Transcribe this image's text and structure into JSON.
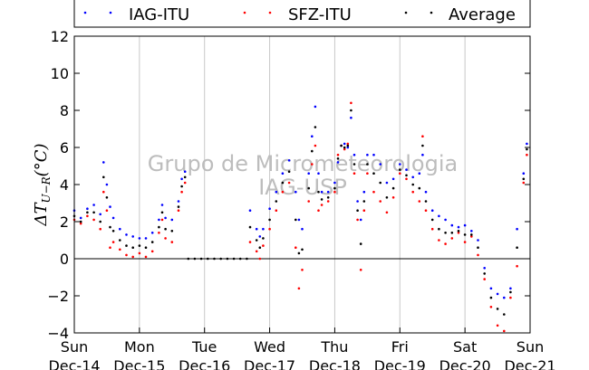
{
  "chart_data": {
    "type": "scatter",
    "ylabel": "ΔT",
    "ylabel_sub": "U−R",
    "ylabel_unit": "(°C)",
    "ylim": [
      -4,
      12
    ],
    "yticks": [
      -4,
      -2,
      0,
      2,
      4,
      6,
      8,
      10,
      12
    ],
    "xlim": [
      0,
      7
    ],
    "xticks": [
      {
        "x": 0,
        "day": "Sun",
        "date": "Dec-14"
      },
      {
        "x": 1,
        "day": "Mon",
        "date": "Dec-15"
      },
      {
        "x": 2,
        "day": "Tue",
        "date": "Dec-16"
      },
      {
        "x": 3,
        "day": "Wed",
        "date": "Dec-17"
      },
      {
        "x": 4,
        "day": "Thu",
        "date": "Dec-18"
      },
      {
        "x": 5,
        "day": "Fri",
        "date": "Dec-19"
      },
      {
        "x": 6,
        "day": "Sat",
        "date": "Dec-20"
      },
      {
        "x": 7,
        "day": "Sun",
        "date": "Dec-21"
      }
    ],
    "grid": "vertical",
    "zero_line": true,
    "legend_position": "top",
    "watermark_lines": [
      "Grupo de Micrometeorologia",
      "IAG-USP"
    ],
    "series": [
      {
        "name": "IAG-ITU",
        "color": "#0000ff",
        "points": [
          [
            0,
            2.6
          ],
          [
            0.1,
            2.2
          ],
          [
            0.2,
            2.7
          ],
          [
            0.3,
            2.9
          ],
          [
            0.4,
            2.4
          ],
          [
            0.45,
            5.2
          ],
          [
            0.5,
            4.0
          ],
          [
            0.55,
            2.8
          ],
          [
            0.6,
            2.2
          ],
          [
            0.7,
            1.6
          ],
          [
            0.8,
            1.3
          ],
          [
            0.9,
            1.2
          ],
          [
            1.0,
            1.1
          ],
          [
            1.1,
            1.1
          ],
          [
            1.2,
            1.4
          ],
          [
            1.3,
            2.1
          ],
          [
            1.35,
            2.9
          ],
          [
            1.4,
            2.2
          ],
          [
            1.5,
            2.1
          ],
          [
            1.6,
            3.1
          ],
          [
            1.65,
            4.3
          ],
          [
            1.7,
            4.7
          ],
          [
            2.7,
            2.6
          ],
          [
            2.8,
            1.6
          ],
          [
            2.85,
            1.2
          ],
          [
            2.9,
            1.6
          ],
          [
            3.0,
            2.7
          ],
          [
            3.1,
            3.6
          ],
          [
            3.2,
            4.6
          ],
          [
            3.3,
            5.3
          ],
          [
            3.4,
            3.6
          ],
          [
            3.45,
            2.1
          ],
          [
            3.5,
            1.6
          ],
          [
            3.6,
            4.6
          ],
          [
            3.65,
            6.6
          ],
          [
            3.7,
            8.2
          ],
          [
            3.75,
            4.6
          ],
          [
            3.8,
            3.6
          ],
          [
            3.9,
            3.6
          ],
          [
            4.0,
            4.1
          ],
          [
            4.05,
            5.2
          ],
          [
            4.1,
            6.1
          ],
          [
            4.15,
            6.2
          ],
          [
            4.2,
            6.0
          ],
          [
            4.25,
            7.6
          ],
          [
            4.3,
            5.6
          ],
          [
            4.35,
            3.1
          ],
          [
            4.4,
            2.1
          ],
          [
            4.45,
            3.6
          ],
          [
            4.5,
            5.6
          ],
          [
            4.6,
            5.6
          ],
          [
            4.7,
            5.1
          ],
          [
            4.8,
            4.1
          ],
          [
            4.9,
            4.3
          ],
          [
            5.0,
            5.1
          ],
          [
            5.1,
            4.8
          ],
          [
            5.2,
            4.4
          ],
          [
            5.3,
            4.6
          ],
          [
            5.35,
            5.6
          ],
          [
            5.4,
            3.6
          ],
          [
            5.5,
            2.6
          ],
          [
            5.6,
            2.3
          ],
          [
            5.7,
            2.1
          ],
          [
            5.8,
            1.8
          ],
          [
            5.9,
            1.7
          ],
          [
            6.0,
            1.8
          ],
          [
            6.1,
            1.5
          ],
          [
            6.2,
            1.0
          ],
          [
            6.3,
            -0.5
          ],
          [
            6.4,
            -1.6
          ],
          [
            6.5,
            -1.9
          ],
          [
            6.6,
            -2.1
          ],
          [
            6.7,
            -1.6
          ],
          [
            6.8,
            1.6
          ],
          [
            6.9,
            4.6
          ],
          [
            6.95,
            6.2
          ]
        ]
      },
      {
        "name": "SFZ-ITU",
        "color": "#ff0000",
        "points": [
          [
            0,
            2.1
          ],
          [
            0.1,
            1.9
          ],
          [
            0.2,
            2.3
          ],
          [
            0.3,
            2.1
          ],
          [
            0.4,
            1.6
          ],
          [
            0.45,
            3.6
          ],
          [
            0.5,
            2.6
          ],
          [
            0.55,
            0.6
          ],
          [
            0.6,
            0.9
          ],
          [
            0.7,
            0.5
          ],
          [
            0.8,
            0.2
          ],
          [
            0.9,
            0.1
          ],
          [
            1.0,
            0.3
          ],
          [
            1.1,
            0.1
          ],
          [
            1.2,
            0.4
          ],
          [
            1.3,
            1.4
          ],
          [
            1.35,
            2.1
          ],
          [
            1.4,
            1.1
          ],
          [
            1.5,
            0.9
          ],
          [
            1.6,
            2.6
          ],
          [
            1.65,
            3.6
          ],
          [
            1.7,
            4.1
          ],
          [
            2.7,
            0.9
          ],
          [
            2.8,
            0.4
          ],
          [
            2.85,
            0.0
          ],
          [
            2.9,
            0.7
          ],
          [
            3.0,
            1.6
          ],
          [
            3.1,
            2.6
          ],
          [
            3.2,
            3.6
          ],
          [
            3.3,
            4.1
          ],
          [
            3.4,
            0.6
          ],
          [
            3.45,
            -1.6
          ],
          [
            3.5,
            -0.6
          ],
          [
            3.6,
            3.1
          ],
          [
            3.65,
            5.1
          ],
          [
            3.7,
            6.1
          ],
          [
            3.75,
            2.6
          ],
          [
            3.8,
            2.9
          ],
          [
            3.9,
            3.1
          ],
          [
            4.0,
            3.6
          ],
          [
            4.05,
            5.6
          ],
          [
            4.1,
            6.1
          ],
          [
            4.15,
            5.9
          ],
          [
            4.2,
            6.2
          ],
          [
            4.25,
            8.4
          ],
          [
            4.3,
            4.6
          ],
          [
            4.35,
            2.1
          ],
          [
            4.4,
            -0.6
          ],
          [
            4.45,
            2.6
          ],
          [
            4.5,
            4.6
          ],
          [
            4.6,
            3.6
          ],
          [
            4.7,
            3.1
          ],
          [
            4.8,
            2.5
          ],
          [
            4.9,
            3.3
          ],
          [
            5.0,
            4.6
          ],
          [
            5.1,
            4.3
          ],
          [
            5.2,
            3.6
          ],
          [
            5.3,
            3.1
          ],
          [
            5.35,
            6.6
          ],
          [
            5.4,
            2.6
          ],
          [
            5.5,
            1.6
          ],
          [
            5.6,
            1.0
          ],
          [
            5.7,
            0.8
          ],
          [
            5.8,
            1.1
          ],
          [
            5.9,
            1.4
          ],
          [
            6.0,
            0.9
          ],
          [
            6.1,
            1.2
          ],
          [
            6.2,
            0.2
          ],
          [
            6.3,
            -1.1
          ],
          [
            6.4,
            -2.6
          ],
          [
            6.5,
            -3.6
          ],
          [
            6.6,
            -3.9
          ],
          [
            6.7,
            -2.1
          ],
          [
            6.8,
            -0.4
          ],
          [
            6.9,
            4.1
          ],
          [
            6.95,
            5.6
          ]
        ]
      },
      {
        "name": "Average",
        "color": "#000000",
        "points": [
          [
            0,
            2.3
          ],
          [
            0.1,
            2.0
          ],
          [
            0.2,
            2.5
          ],
          [
            0.3,
            2.5
          ],
          [
            0.4,
            2.0
          ],
          [
            0.45,
            4.4
          ],
          [
            0.5,
            3.3
          ],
          [
            0.55,
            1.7
          ],
          [
            0.6,
            1.5
          ],
          [
            0.7,
            1.0
          ],
          [
            0.8,
            0.7
          ],
          [
            0.9,
            0.6
          ],
          [
            1.0,
            0.7
          ],
          [
            1.1,
            0.6
          ],
          [
            1.2,
            0.9
          ],
          [
            1.3,
            1.7
          ],
          [
            1.35,
            2.5
          ],
          [
            1.4,
            1.6
          ],
          [
            1.5,
            1.5
          ],
          [
            1.6,
            2.8
          ],
          [
            1.65,
            3.9
          ],
          [
            1.7,
            4.4
          ],
          [
            1.75,
            0.0
          ],
          [
            1.85,
            0.0
          ],
          [
            1.95,
            0.0
          ],
          [
            2.05,
            0.0
          ],
          [
            2.15,
            0.0
          ],
          [
            2.25,
            0.0
          ],
          [
            2.35,
            0.0
          ],
          [
            2.45,
            0.0
          ],
          [
            2.55,
            0.0
          ],
          [
            2.65,
            0.0
          ],
          [
            2.7,
            1.7
          ],
          [
            2.8,
            1.0
          ],
          [
            2.85,
            0.6
          ],
          [
            2.9,
            1.1
          ],
          [
            3.0,
            2.1
          ],
          [
            3.1,
            3.1
          ],
          [
            3.2,
            4.1
          ],
          [
            3.3,
            4.7
          ],
          [
            3.4,
            2.1
          ],
          [
            3.45,
            0.3
          ],
          [
            3.5,
            0.5
          ],
          [
            3.6,
            3.8
          ],
          [
            3.65,
            5.8
          ],
          [
            3.7,
            7.1
          ],
          [
            3.75,
            3.6
          ],
          [
            3.8,
            3.2
          ],
          [
            3.9,
            3.3
          ],
          [
            4.0,
            3.8
          ],
          [
            4.05,
            5.4
          ],
          [
            4.1,
            6.1
          ],
          [
            4.15,
            6.0
          ],
          [
            4.2,
            6.1
          ],
          [
            4.25,
            8.0
          ],
          [
            4.3,
            5.1
          ],
          [
            4.35,
            2.6
          ],
          [
            4.4,
            0.8
          ],
          [
            4.45,
            3.1
          ],
          [
            4.5,
            5.1
          ],
          [
            4.6,
            4.6
          ],
          [
            4.7,
            4.1
          ],
          [
            4.8,
            3.3
          ],
          [
            4.9,
            3.8
          ],
          [
            5.0,
            4.8
          ],
          [
            5.1,
            4.5
          ],
          [
            5.2,
            4.0
          ],
          [
            5.3,
            3.8
          ],
          [
            5.35,
            6.1
          ],
          [
            5.4,
            3.1
          ],
          [
            5.5,
            2.1
          ],
          [
            5.6,
            1.6
          ],
          [
            5.7,
            1.4
          ],
          [
            5.8,
            1.4
          ],
          [
            5.9,
            1.5
          ],
          [
            6.0,
            1.3
          ],
          [
            6.1,
            1.3
          ],
          [
            6.2,
            0.6
          ],
          [
            6.3,
            -0.8
          ],
          [
            6.4,
            -2.1
          ],
          [
            6.5,
            -2.7
          ],
          [
            6.6,
            -3.0
          ],
          [
            6.7,
            -1.8
          ],
          [
            6.8,
            0.6
          ],
          [
            6.9,
            4.3
          ],
          [
            6.95,
            5.9
          ]
        ]
      }
    ]
  }
}
